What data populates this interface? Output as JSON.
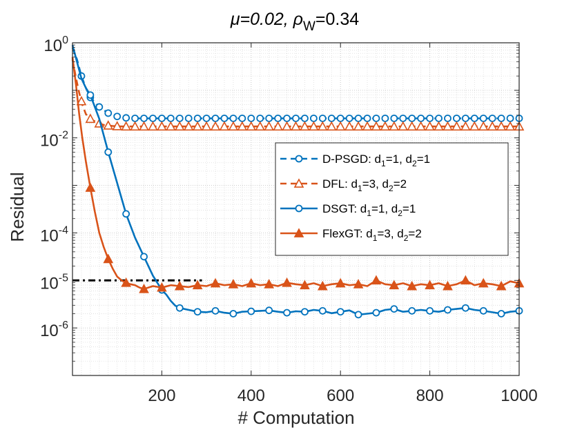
{
  "chart_data": {
    "type": "line",
    "title": {
      "prefix": "μ=0.02, ρ",
      "sub": "W",
      "suffix": "=0.34"
    },
    "xlabel": "# Computation",
    "ylabel": "Residual",
    "xlim": [
      0,
      1000
    ],
    "ylim_exp": [
      -7,
      0
    ],
    "y_scale": "log",
    "grid": true,
    "legend_position": "right",
    "x_ticks": [
      {
        "value": 200,
        "label": "200"
      },
      {
        "value": 400,
        "label": "400"
      },
      {
        "value": 600,
        "label": "600"
      },
      {
        "value": 800,
        "label": "800"
      },
      {
        "value": 1000,
        "label": "1000"
      }
    ],
    "y_ticks": [
      {
        "exp": 0,
        "base": "10",
        "sup": "0"
      },
      {
        "exp": -2,
        "base": "10",
        "sup": "-2"
      },
      {
        "exp": -4,
        "base": "10",
        "sup": "-4"
      },
      {
        "exp": -5,
        "base": "10",
        "sup": "-5"
      },
      {
        "exp": -6,
        "base": "10",
        "sup": "-6"
      }
    ],
    "reference_line": {
      "name": "threshold",
      "x": [
        0,
        290
      ],
      "y_exp": -5.0,
      "color": "#000000",
      "style": "dash-dot"
    },
    "series": [
      {
        "name": "D-PSGD",
        "legend": {
          "base": "D-PSGD: d",
          "s1": "1",
          "mid": "=1, d",
          "s2": "2",
          "end": "=1"
        },
        "color": "#0072BD",
        "line": "dashed",
        "marker": "circle",
        "marker_fill": "none",
        "marker_every": 20,
        "x": [
          0,
          10,
          20,
          30,
          40,
          60,
          80,
          100,
          120,
          140,
          1000
        ],
        "y_exp": [
          -0.1,
          -0.35,
          -0.7,
          -0.95,
          -1.15,
          -1.35,
          -1.48,
          -1.55,
          -1.58,
          -1.59,
          -1.59
        ]
      },
      {
        "name": "DFL",
        "legend": {
          "base": "DFL: d",
          "s1": "1",
          "mid": "=3, d",
          "s2": "2",
          "end": "=2"
        },
        "color": "#D95319",
        "line": "dashed",
        "marker": "triangle",
        "marker_fill": "none",
        "marker_every": 20,
        "x": [
          0,
          8,
          15,
          22,
          30,
          40,
          55,
          70,
          90,
          110,
          1000
        ],
        "y_exp": [
          -0.35,
          -0.75,
          -1.05,
          -1.3,
          -1.5,
          -1.6,
          -1.68,
          -1.73,
          -1.75,
          -1.76,
          -1.76
        ]
      },
      {
        "name": "DSGT",
        "legend": {
          "base": "DSGT: d",
          "s1": "1",
          "mid": "=1, d",
          "s2": "2",
          "end": "=1"
        },
        "color": "#0072BD",
        "line": "solid",
        "marker": "circle",
        "marker_fill": "none",
        "marker_every": 40,
        "x": [
          0,
          10,
          20,
          30,
          40,
          60,
          80,
          100,
          120,
          140,
          160,
          180,
          200,
          210,
          220,
          230,
          240,
          260,
          280,
          300,
          320,
          340,
          360,
          380,
          400,
          420,
          440,
          460,
          480,
          500,
          520,
          540,
          560,
          580,
          600,
          620,
          640,
          660,
          680,
          700,
          720,
          740,
          760,
          780,
          800,
          820,
          840,
          860,
          880,
          900,
          920,
          940,
          960,
          980,
          1000
        ],
        "y_exp": [
          -0.05,
          -0.4,
          -0.75,
          -0.95,
          -1.1,
          -1.6,
          -2.3,
          -2.95,
          -3.6,
          -4.1,
          -4.5,
          -4.9,
          -5.2,
          -5.3,
          -5.43,
          -5.53,
          -5.58,
          -5.62,
          -5.66,
          -5.67,
          -5.64,
          -5.68,
          -5.7,
          -5.66,
          -5.65,
          -5.64,
          -5.63,
          -5.66,
          -5.68,
          -5.65,
          -5.66,
          -5.62,
          -5.64,
          -5.69,
          -5.66,
          -5.63,
          -5.72,
          -5.7,
          -5.68,
          -5.62,
          -5.6,
          -5.66,
          -5.64,
          -5.62,
          -5.64,
          -5.66,
          -5.62,
          -5.6,
          -5.58,
          -5.62,
          -5.64,
          -5.67,
          -5.7,
          -5.66,
          -5.64
        ]
      },
      {
        "name": "FlexGT",
        "legend": {
          "base": "FlexGT: d",
          "s1": "1",
          "mid": "=3, d",
          "s2": "2",
          "end": "=2"
        },
        "color": "#D95319",
        "line": "solid",
        "marker": "triangle",
        "marker_fill": "solid",
        "marker_every": 40,
        "x": [
          0,
          8,
          15,
          22,
          30,
          40,
          50,
          60,
          70,
          80,
          90,
          100,
          110,
          120,
          130,
          140,
          150,
          160,
          180,
          200,
          220,
          240,
          260,
          280,
          300,
          320,
          340,
          360,
          380,
          400,
          420,
          440,
          460,
          480,
          500,
          520,
          540,
          560,
          580,
          600,
          620,
          640,
          660,
          680,
          700,
          720,
          740,
          760,
          780,
          800,
          820,
          840,
          860,
          880,
          900,
          920,
          940,
          960,
          980,
          1000
        ],
        "y_exp": [
          -0.3,
          -0.9,
          -1.5,
          -2.0,
          -2.5,
          -3.05,
          -3.55,
          -4.0,
          -4.3,
          -4.55,
          -4.75,
          -4.92,
          -5.0,
          -5.05,
          -5.08,
          -5.1,
          -5.15,
          -5.18,
          -5.12,
          -5.15,
          -5.1,
          -5.12,
          -5.14,
          -5.1,
          -5.12,
          -5.06,
          -5.1,
          -5.08,
          -5.12,
          -5.06,
          -5.1,
          -5.08,
          -5.12,
          -5.05,
          -5.08,
          -5.1,
          -5.06,
          -5.12,
          -5.08,
          -5.06,
          -5.1,
          -5.08,
          -5.12,
          -5.0,
          -5.08,
          -5.1,
          -5.06,
          -5.12,
          -5.08,
          -5.1,
          -5.06,
          -5.12,
          -5.08,
          -5.0,
          -5.1,
          -5.06,
          -5.08,
          -5.12,
          -5.02,
          -5.06
        ]
      }
    ]
  }
}
